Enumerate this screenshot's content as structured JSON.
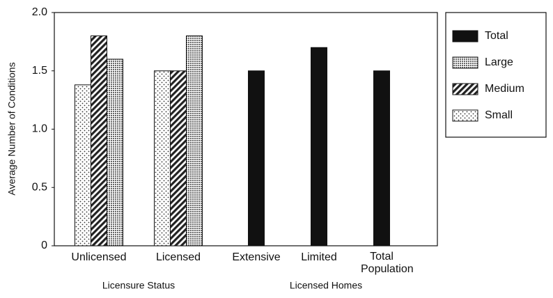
{
  "chart_data": {
    "type": "bar",
    "y_label": "Average Number of Conditions",
    "categories": [
      "Unlicensed",
      "Licensed",
      "Extensive",
      "Limited",
      "Total Population"
    ],
    "groups": [
      {
        "label": "Licensure Status",
        "categories": [
          0,
          1
        ]
      },
      {
        "label": "Licensed Homes",
        "categories": [
          2,
          3,
          4
        ]
      }
    ],
    "series": [
      {
        "name": "Total",
        "color": "#111111",
        "values": [
          null,
          null,
          1.5,
          1.7,
          1.5
        ]
      },
      {
        "name": "Large",
        "color": "#666666",
        "values": [
          1.6,
          1.8,
          null,
          null,
          null
        ]
      },
      {
        "name": "Medium",
        "color": "#222222",
        "values": [
          1.8,
          1.5,
          null,
          null,
          null
        ]
      },
      {
        "name": "Small",
        "color": "#333333",
        "values": [
          1.38,
          1.5,
          null,
          null,
          null
        ]
      }
    ],
    "ylim": [
      0,
      2
    ],
    "yticks": [
      0,
      0.5,
      {
        "value": 1,
        "label": "1.0"
      },
      1.5,
      {
        "value": 2,
        "label": "2.0"
      }
    ],
    "legend": "outside-right"
  }
}
